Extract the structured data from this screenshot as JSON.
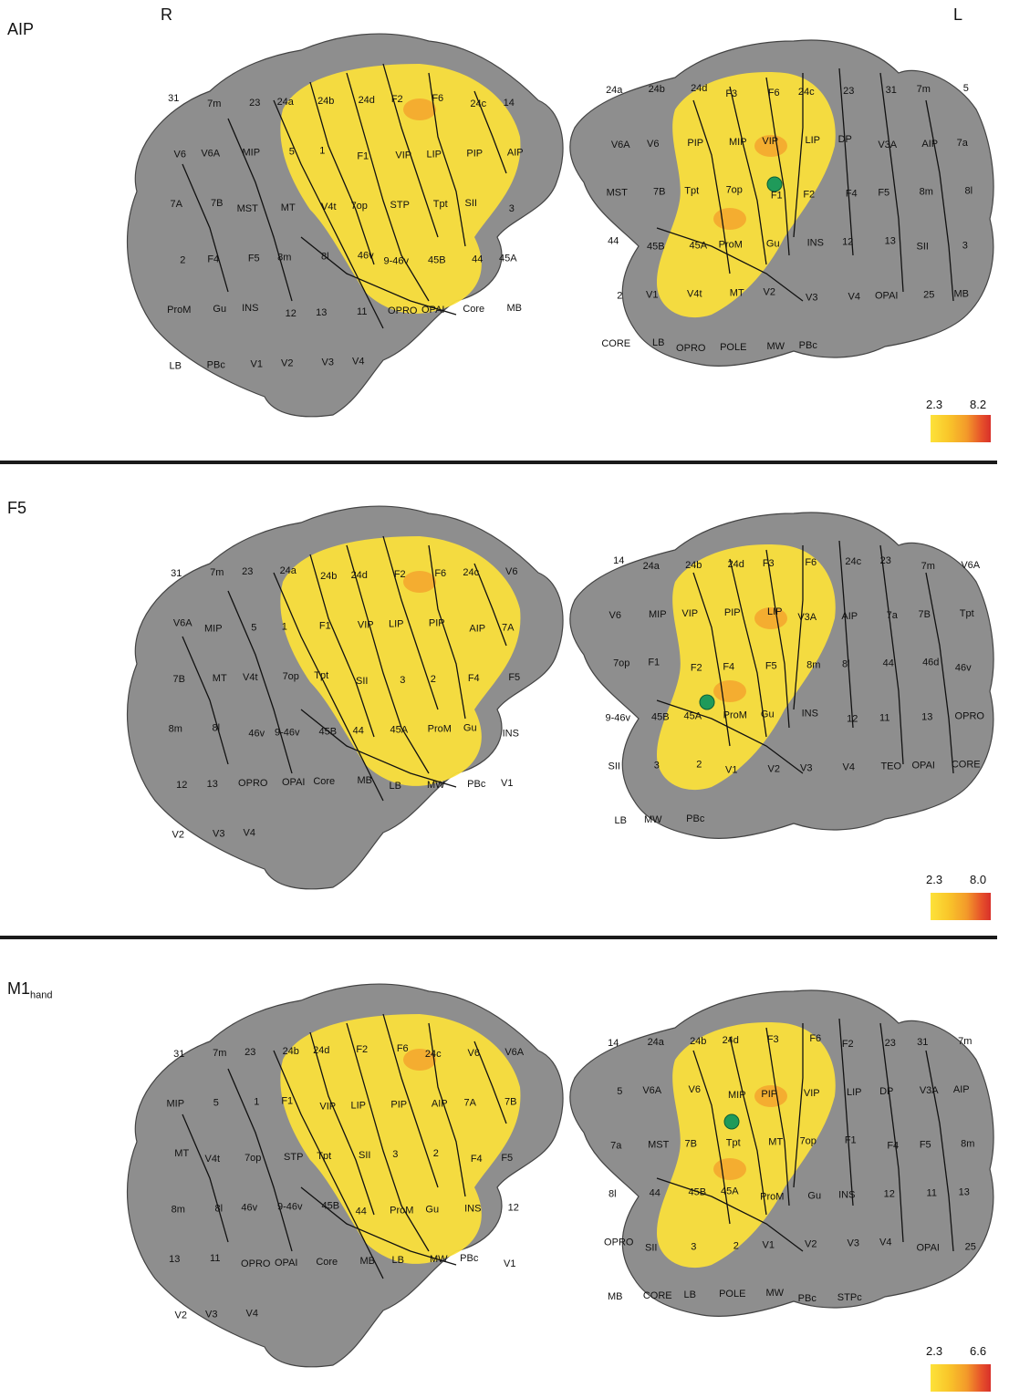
{
  "hemispheres": {
    "right": "R",
    "left": "L"
  },
  "colors": {
    "cortex": "#8e8e8e",
    "cortex_dark": "#6f6f6f",
    "activation_low": "#fde23a",
    "activation_high": "#d8302a",
    "seed": "#1f9a5a"
  },
  "panels": [
    {
      "title": "AIP",
      "title_sub": "",
      "colorbar": {
        "min": "2.3",
        "max": "8.2"
      },
      "right_labels": [
        "31",
        "7m",
        "23",
        "24a",
        "24b",
        "24d",
        "F2",
        "F6",
        "24c",
        "14",
        "V6",
        "V6A",
        "MIP",
        "5",
        "1",
        "F1",
        "VIP",
        "LIP",
        "PIP",
        "AIP",
        "7A",
        "7B",
        "MST",
        "MT",
        "V4t",
        "7op",
        "STP",
        "Tpt",
        "SII",
        "3",
        "2",
        "F4",
        "F5",
        "8m",
        "8l",
        "46v",
        "9-46v",
        "45B",
        "44",
        "45A",
        "ProM",
        "Gu",
        "INS",
        "12",
        "13",
        "11",
        "OPRO",
        "OPAI",
        "Core",
        "MB",
        "LB",
        "PBc",
        "V1",
        "V2",
        "V3",
        "V4"
      ],
      "left_labels": [
        "24a",
        "24b",
        "24d",
        "F3",
        "F6",
        "24c",
        "23",
        "31",
        "7m",
        "5",
        "V6A",
        "V6",
        "PIP",
        "MIP",
        "VIP",
        "LIP",
        "DP",
        "V3A",
        "AIP",
        "7a",
        "MST",
        "7B",
        "Tpt",
        "7op",
        "F1",
        "F2",
        "F4",
        "F5",
        "8m",
        "8l",
        "44",
        "45B",
        "45A",
        "ProM",
        "Gu",
        "INS",
        "12",
        "13",
        "SII",
        "3",
        "2",
        "V1",
        "V4t",
        "MT",
        "V2",
        "V3",
        "V4",
        "OPAI",
        "25",
        "MB",
        "CORE",
        "LB",
        "OPRO",
        "POLE",
        "MW",
        "PBc"
      ]
    },
    {
      "title": "F5",
      "title_sub": "",
      "colorbar": {
        "min": "2.3",
        "max": "8.0"
      },
      "right_labels": [
        "31",
        "7m",
        "23",
        "24a",
        "24b",
        "24d",
        "F2",
        "F6",
        "24c",
        "V6",
        "V6A",
        "MIP",
        "5",
        "1",
        "F1",
        "VIP",
        "LIP",
        "PIP",
        "AIP",
        "7A",
        "7B",
        "MT",
        "V4t",
        "7op",
        "Tpt",
        "SII",
        "3",
        "2",
        "F4",
        "F5",
        "8m",
        "8l",
        "46v",
        "9-46v",
        "45B",
        "44",
        "45A",
        "ProM",
        "Gu",
        "INS",
        "12",
        "13",
        "OPRO",
        "OPAI",
        "Core",
        "MB",
        "LB",
        "MW",
        "PBc",
        "V1",
        "V2",
        "V3",
        "V4"
      ],
      "left_labels": [
        "14",
        "24a",
        "24b",
        "24d",
        "F3",
        "F6",
        "24c",
        "23",
        "7m",
        "V6A",
        "V6",
        "MIP",
        "VIP",
        "PIP",
        "LIP",
        "V3A",
        "AIP",
        "7a",
        "7B",
        "Tpt",
        "7op",
        "F1",
        "F2",
        "F4",
        "F5",
        "8m",
        "8l",
        "44",
        "46d",
        "46v",
        "9-46v",
        "45B",
        "45A",
        "ProM",
        "Gu",
        "INS",
        "12",
        "11",
        "13",
        "OPRO",
        "SII",
        "3",
        "2",
        "V1",
        "V2",
        "V3",
        "V4",
        "TEO",
        "OPAI",
        "CORE",
        "LB",
        "MW",
        "PBc"
      ]
    },
    {
      "title": "M1",
      "title_sub": "hand",
      "colorbar": {
        "min": "2.3",
        "max": "6.6"
      },
      "right_labels": [
        "31",
        "7m",
        "23",
        "24b",
        "24d",
        "F2",
        "F6",
        "24c",
        "V6",
        "V6A",
        "MIP",
        "5",
        "1",
        "F1",
        "VIP",
        "LIP",
        "PIP",
        "AIP",
        "7A",
        "7B",
        "MT",
        "V4t",
        "7op",
        "STP",
        "Tpt",
        "SII",
        "3",
        "2",
        "F4",
        "F5",
        "8m",
        "8l",
        "46v",
        "9-46v",
        "45B",
        "44",
        "ProM",
        "Gu",
        "INS",
        "12",
        "13",
        "11",
        "OPRO",
        "OPAI",
        "Core",
        "MB",
        "LB",
        "MW",
        "PBc",
        "V1",
        "V2",
        "V3",
        "V4"
      ],
      "left_labels": [
        "14",
        "24a",
        "24b",
        "24d",
        "F3",
        "F6",
        "F2",
        "23",
        "31",
        "7m",
        "5",
        "V6A",
        "V6",
        "MIP",
        "PIP",
        "VIP",
        "LIP",
        "DP",
        "V3A",
        "AIP",
        "7a",
        "MST",
        "7B",
        "Tpt",
        "MT",
        "7op",
        "F1",
        "F4",
        "F5",
        "8m",
        "8l",
        "44",
        "45B",
        "45A",
        "ProM",
        "Gu",
        "INS",
        "12",
        "11",
        "13",
        "OPRO",
        "SII",
        "3",
        "2",
        "V1",
        "V2",
        "V3",
        "V4",
        "OPAI",
        "25",
        "MB",
        "CORE",
        "LB",
        "POLE",
        "MW",
        "PBc",
        "STPc"
      ]
    }
  ]
}
